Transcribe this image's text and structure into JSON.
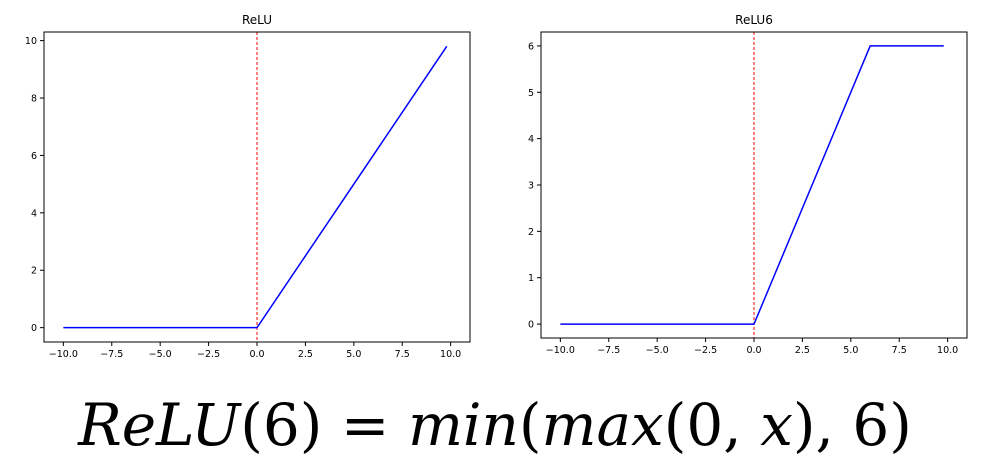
{
  "chart_data": [
    {
      "type": "line",
      "title": "ReLU",
      "xlabel": "",
      "ylabel": "",
      "xlim": [
        -11,
        11
      ],
      "ylim": [
        -0.5,
        10.3
      ],
      "x_ticks": [
        -10.0,
        -7.5,
        -5.0,
        -2.5,
        0.0,
        2.5,
        5.0,
        7.5,
        10.0
      ],
      "x_tick_labels": [
        "−10.0",
        "−7.5",
        "−5.0",
        "−2.5",
        "0.0",
        "2.5",
        "5.0",
        "7.5",
        "10.0"
      ],
      "y_ticks": [
        0,
        2,
        4,
        6,
        8,
        10
      ],
      "y_tick_labels": [
        "0",
        "2",
        "4",
        "6",
        "8",
        "10"
      ],
      "series": [
        {
          "x": [
            -10,
            0,
            9.8
          ],
          "y": [
            0,
            0,
            9.8
          ],
          "color": "#0000ff"
        }
      ],
      "vertical_line": {
        "x": 0,
        "color": "#ff0000",
        "style": "dashed"
      },
      "grid": false
    },
    {
      "type": "line",
      "title": "ReLU6",
      "xlabel": "",
      "ylabel": "",
      "xlim": [
        -11,
        11
      ],
      "ylim": [
        -0.3,
        6.3
      ],
      "x_ticks": [
        -10.0,
        -7.5,
        -5.0,
        -2.5,
        0.0,
        2.5,
        5.0,
        7.5,
        10.0
      ],
      "x_tick_labels": [
        "−10.0",
        "−7.5",
        "−5.0",
        "−2.5",
        "0.0",
        "2.5",
        "5.0",
        "7.5",
        "10.0"
      ],
      "y_ticks": [
        0,
        1,
        2,
        3,
        4,
        5,
        6
      ],
      "y_tick_labels": [
        "0",
        "1",
        "2",
        "3",
        "4",
        "5",
        "6"
      ],
      "series": [
        {
          "x": [
            -10,
            0,
            6,
            9.8
          ],
          "y": [
            0,
            0,
            6,
            6
          ],
          "color": "#0000ff"
        }
      ],
      "vertical_line": {
        "x": 0,
        "color": "#ff0000",
        "style": "dashed"
      },
      "grid": false
    }
  ],
  "formula": {
    "lhs_func": "ReLU",
    "lhs_arg": "(6)",
    "equals": " = ",
    "min_word": "min",
    "open1": "(",
    "max_word": "max",
    "open2": "(0, ",
    "var_x": "x",
    "close_rest": "), 6)"
  }
}
